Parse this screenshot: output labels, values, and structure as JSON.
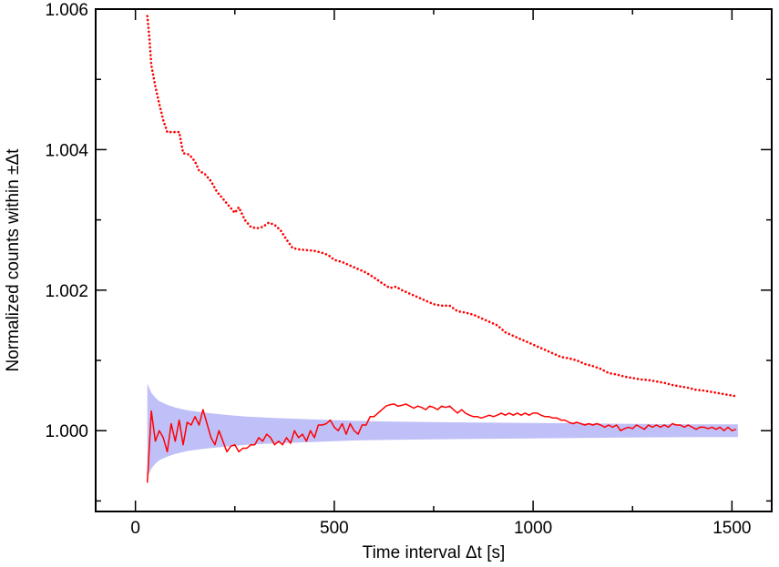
{
  "chart_data": {
    "type": "line",
    "xlabel": "Time interval Δt [s]",
    "ylabel": "Normalized counts within ±Δt",
    "xlim": [
      -100,
      1600
    ],
    "ylim": [
      0.99885,
      1.006
    ],
    "x_ticks": [
      0,
      500,
      1000,
      1500
    ],
    "x_tick_labels": [
      "0",
      "500",
      "1000",
      "1500"
    ],
    "y_ticks": [
      1.0,
      1.002,
      1.004,
      1.006
    ],
    "y_tick_labels": [
      "1.000",
      "1.002",
      "1.004",
      "1.006"
    ],
    "grid": false,
    "legend": "none",
    "series": [
      {
        "style": "dotted",
        "color": "#ff0000",
        "points": [
          [
            30,
            1.0059
          ],
          [
            35,
            1.0056
          ],
          [
            40,
            1.0052
          ],
          [
            50,
            1.0049
          ],
          [
            60,
            1.00465
          ],
          [
            70,
            1.00442
          ],
          [
            80,
            1.00425
          ],
          [
            100,
            1.00425
          ],
          [
            110,
            1.00425
          ],
          [
            120,
            1.00395
          ],
          [
            135,
            1.00393
          ],
          [
            150,
            1.00383
          ],
          [
            160,
            1.0037
          ],
          [
            175,
            1.00365
          ],
          [
            190,
            1.00355
          ],
          [
            205,
            1.0034
          ],
          [
            220,
            1.0033
          ],
          [
            235,
            1.0032
          ],
          [
            250,
            1.0031
          ],
          [
            260,
            1.00318
          ],
          [
            275,
            1.003
          ],
          [
            290,
            1.0029
          ],
          [
            305,
            1.00288
          ],
          [
            320,
            1.0029
          ],
          [
            335,
            1.00296
          ],
          [
            350,
            1.00293
          ],
          [
            365,
            1.00285
          ],
          [
            380,
            1.00272
          ],
          [
            395,
            1.0026
          ],
          [
            410,
            1.00258
          ],
          [
            430,
            1.00257
          ],
          [
            450,
            1.00256
          ],
          [
            470,
            1.00253
          ],
          [
            485,
            1.0025
          ],
          [
            500,
            1.00243
          ],
          [
            520,
            1.0024
          ],
          [
            540,
            1.00235
          ],
          [
            560,
            1.0023
          ],
          [
            580,
            1.00225
          ],
          [
            600,
            1.00218
          ],
          [
            620,
            1.0021
          ],
          [
            640,
            1.00203
          ],
          [
            655,
            1.00205
          ],
          [
            670,
            1.002
          ],
          [
            690,
            1.00195
          ],
          [
            710,
            1.0019
          ],
          [
            730,
            1.00185
          ],
          [
            750,
            1.0018
          ],
          [
            770,
            1.00178
          ],
          [
            790,
            1.00178
          ],
          [
            810,
            1.0017
          ],
          [
            830,
            1.00168
          ],
          [
            850,
            1.00165
          ],
          [
            870,
            1.0016
          ],
          [
            890,
            1.00155
          ],
          [
            910,
            1.0015
          ],
          [
            930,
            1.0014
          ],
          [
            950,
            1.00135
          ],
          [
            970,
            1.0013
          ],
          [
            990,
            1.00125
          ],
          [
            1010,
            1.0012
          ],
          [
            1030,
            1.00115
          ],
          [
            1050,
            1.0011
          ],
          [
            1070,
            1.00105
          ],
          [
            1090,
            1.00103
          ],
          [
            1110,
            1.001
          ],
          [
            1130,
            1.00095
          ],
          [
            1150,
            1.00092
          ],
          [
            1170,
            1.00088
          ],
          [
            1190,
            1.00082
          ],
          [
            1210,
            1.0008
          ],
          [
            1230,
            1.00077
          ],
          [
            1250,
            1.00075
          ],
          [
            1270,
            1.00073
          ],
          [
            1290,
            1.00072
          ],
          [
            1310,
            1.0007
          ],
          [
            1330,
            1.00068
          ],
          [
            1350,
            1.00065
          ],
          [
            1370,
            1.00063
          ],
          [
            1390,
            1.00061
          ],
          [
            1410,
            1.00058
          ],
          [
            1430,
            1.00057
          ],
          [
            1450,
            1.00055
          ],
          [
            1470,
            1.00053
          ],
          [
            1490,
            1.00051
          ],
          [
            1510,
            1.00049
          ]
        ]
      },
      {
        "style": "solid",
        "color": "#ff0000",
        "points": [
          [
            30,
            0.99926
          ],
          [
            40,
            1.00028
          ],
          [
            50,
            0.99985
          ],
          [
            60,
            1.0
          ],
          [
            70,
            0.9999
          ],
          [
            80,
            0.9997
          ],
          [
            90,
            1.0001
          ],
          [
            100,
            0.99985
          ],
          [
            110,
            1.00015
          ],
          [
            120,
            0.9998
          ],
          [
            130,
            1.00012
          ],
          [
            140,
            1.00008
          ],
          [
            150,
            1.0002
          ],
          [
            160,
            1.00008
          ],
          [
            170,
            1.0003
          ],
          [
            180,
            1.0001
          ],
          [
            190,
            0.9999
          ],
          [
            200,
            0.9998
          ],
          [
            210,
            1.0
          ],
          [
            220,
            0.99985
          ],
          [
            230,
            0.9997
          ],
          [
            240,
            0.99978
          ],
          [
            250,
            0.9998
          ],
          [
            260,
            0.9997
          ],
          [
            270,
            0.99975
          ],
          [
            280,
            0.99975
          ],
          [
            290,
            0.9998
          ],
          [
            300,
            0.9998
          ],
          [
            310,
            0.9999
          ],
          [
            320,
            0.99985
          ],
          [
            330,
            0.99995
          ],
          [
            340,
            0.9999
          ],
          [
            350,
            0.9998
          ],
          [
            360,
            0.99985
          ],
          [
            370,
            0.9998
          ],
          [
            380,
            0.9999
          ],
          [
            390,
            0.99982
          ],
          [
            400,
            1.0
          ],
          [
            410,
            0.9999
          ],
          [
            420,
            0.99995
          ],
          [
            430,
            0.99985
          ],
          [
            440,
            1.0
          ],
          [
            450,
            0.9999
          ],
          [
            460,
            1.00008
          ],
          [
            470,
            1.00008
          ],
          [
            480,
            1.0001
          ],
          [
            490,
            1.00015
          ],
          [
            500,
            1.00005
          ],
          [
            510,
            1.0
          ],
          [
            520,
            1.0001
          ],
          [
            530,
            0.99995
          ],
          [
            540,
            1.0001
          ],
          [
            550,
            1.0
          ],
          [
            560,
            0.99995
          ],
          [
            570,
            1.00008
          ],
          [
            580,
            1.00008
          ],
          [
            590,
            1.0002
          ],
          [
            600,
            1.0002
          ],
          [
            610,
            1.00025
          ],
          [
            620,
            1.0003
          ],
          [
            630,
            1.00035
          ],
          [
            640,
            1.00037
          ],
          [
            650,
            1.00038
          ],
          [
            660,
            1.00035
          ],
          [
            670,
            1.00036
          ],
          [
            680,
            1.00038
          ],
          [
            690,
            1.00035
          ],
          [
            700,
            1.00032
          ],
          [
            710,
            1.00035
          ],
          [
            720,
            1.00033
          ],
          [
            730,
            1.0003
          ],
          [
            740,
            1.00035
          ],
          [
            750,
            1.00033
          ],
          [
            760,
            1.0003
          ],
          [
            770,
            1.00035
          ],
          [
            780,
            1.00033
          ],
          [
            790,
            1.00035
          ],
          [
            800,
            1.0003
          ],
          [
            810,
            1.00025
          ],
          [
            820,
            1.0003
          ],
          [
            830,
            1.00025
          ],
          [
            840,
            1.00022
          ],
          [
            850,
            1.0002
          ],
          [
            860,
            1.0002
          ],
          [
            870,
            1.00018
          ],
          [
            880,
            1.0002
          ],
          [
            890,
            1.00022
          ],
          [
            900,
            1.0002
          ],
          [
            910,
            1.00022
          ],
          [
            920,
            1.00025
          ],
          [
            930,
            1.00022
          ],
          [
            940,
            1.00025
          ],
          [
            950,
            1.00022
          ],
          [
            960,
            1.00025
          ],
          [
            970,
            1.00022
          ],
          [
            980,
            1.00025
          ],
          [
            990,
            1.00022
          ],
          [
            1000,
            1.00025
          ],
          [
            1010,
            1.00025
          ],
          [
            1020,
            1.00022
          ],
          [
            1030,
            1.0002
          ],
          [
            1040,
            1.0002
          ],
          [
            1050,
            1.00018
          ],
          [
            1060,
            1.00018
          ],
          [
            1070,
            1.00015
          ],
          [
            1080,
            1.00015
          ],
          [
            1090,
            1.00012
          ],
          [
            1100,
            1.0001
          ],
          [
            1110,
            1.00012
          ],
          [
            1120,
            1.0001
          ],
          [
            1130,
            1.00008
          ],
          [
            1140,
            1.0001
          ],
          [
            1150,
            1.00008
          ],
          [
            1160,
            1.0001
          ],
          [
            1170,
            1.00008
          ],
          [
            1180,
            1.00005
          ],
          [
            1190,
            1.00008
          ],
          [
            1200,
            1.00005
          ],
          [
            1210,
            1.00008
          ],
          [
            1220,
            1.0
          ],
          [
            1230,
            1.00003
          ],
          [
            1240,
            1.00005
          ],
          [
            1250,
            1.00003
          ],
          [
            1260,
            1.00008
          ],
          [
            1270,
            1.00005
          ],
          [
            1280,
            1.00002
          ],
          [
            1290,
            1.00008
          ],
          [
            1300,
            1.00005
          ],
          [
            1310,
            1.00008
          ],
          [
            1320,
            1.00005
          ],
          [
            1330,
            1.00008
          ],
          [
            1340,
            1.00005
          ],
          [
            1350,
            1.0001
          ],
          [
            1360,
            1.00008
          ],
          [
            1370,
            1.00008
          ],
          [
            1380,
            1.00005
          ],
          [
            1390,
            1.00008
          ],
          [
            1400,
            1.00005
          ],
          [
            1410,
            1.00002
          ],
          [
            1420,
            1.00005
          ],
          [
            1430,
            1.00005
          ],
          [
            1440,
            1.00003
          ],
          [
            1450,
            1.00005
          ],
          [
            1460,
            1.00002
          ],
          [
            1470,
            1.00005
          ],
          [
            1480,
            1.0
          ],
          [
            1490,
            1.00005
          ],
          [
            1500,
            1.0
          ],
          [
            1510,
            1.00002
          ]
        ]
      }
    ],
    "band": {
      "color": "#c0c0f8",
      "x": [
        30,
        40,
        50,
        60,
        80,
        100,
        130,
        170,
        220,
        280,
        350,
        450,
        550,
        650,
        800,
        1000,
        1200,
        1400,
        1515
      ],
      "upper": [
        1.00067,
        1.00054,
        1.00047,
        1.00042,
        1.00037,
        1.00033,
        1.00029,
        1.00026,
        1.00023,
        1.0002,
        1.00018,
        1.00016,
        1.00014,
        1.00013,
        1.00012,
        1.00011,
        1.0001,
        1.00009,
        1.00009
      ],
      "lower": [
        0.99933,
        0.99946,
        0.99953,
        0.99958,
        0.99963,
        0.99967,
        0.99971,
        0.99974,
        0.99977,
        0.9998,
        0.99982,
        0.99984,
        0.99986,
        0.99987,
        0.99988,
        0.99989,
        0.9999,
        0.99991,
        0.99991
      ]
    }
  }
}
